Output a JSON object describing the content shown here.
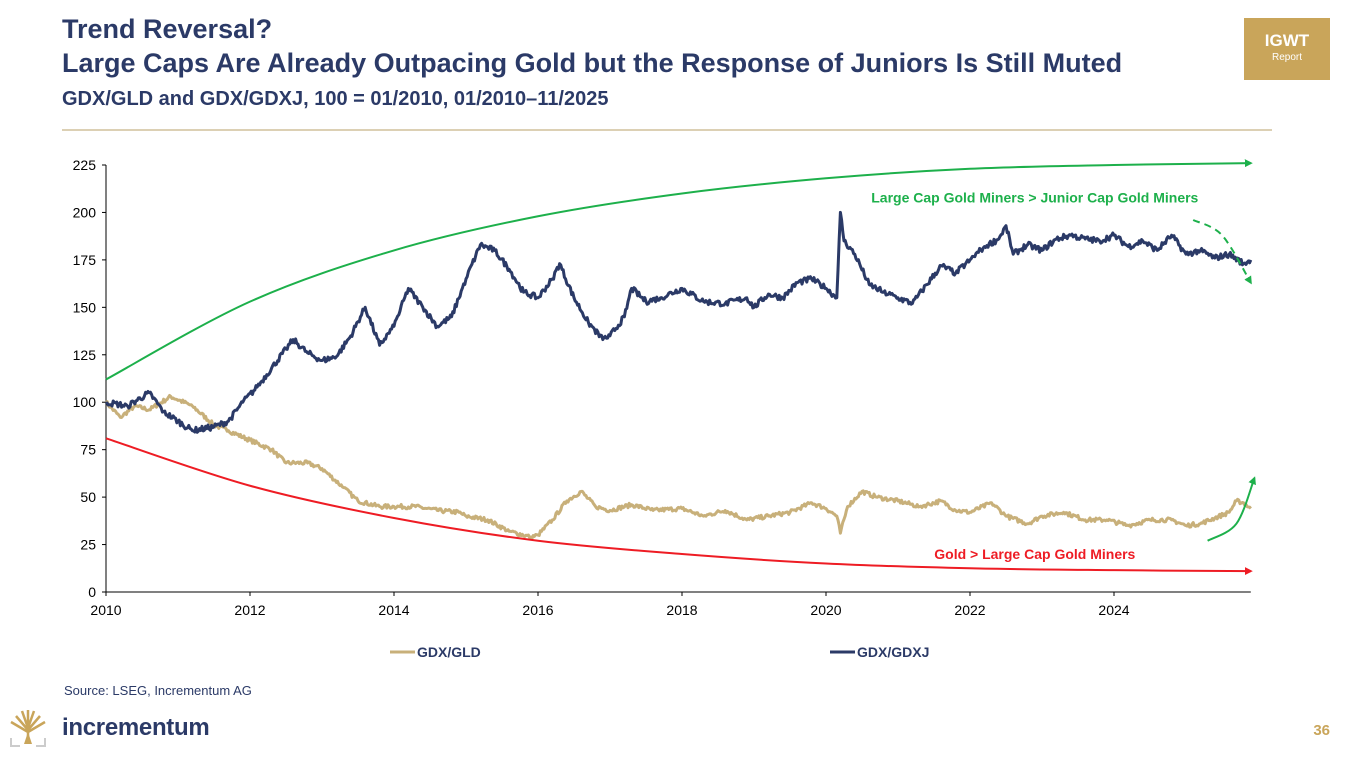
{
  "header": {
    "title_line1": "Trend Reversal?",
    "title_line2": "Large Caps Are Already Outpacing Gold but the Response of Juniors Is Still Muted",
    "subtitle": "GDX/GLD and GDX/GDXJ, 100 = 01/2010, 01/2010–11/2025"
  },
  "badge": {
    "line1": "IGWT",
    "line2": "Report"
  },
  "footer": {
    "source": "Source: LSEG, Incrementum AG",
    "brand": "incrementum",
    "page_number": "36"
  },
  "colors": {
    "navy": "#2b3a67",
    "tan": "#c8b07a",
    "green": "#1db04b",
    "red": "#ee1c24",
    "gold": "#c9a55a"
  },
  "chart_data": {
    "type": "line",
    "title": "",
    "xlabel": "",
    "ylabel": "",
    "xlim": [
      2010,
      2025.9
    ],
    "ylim": [
      0,
      225
    ],
    "xticks": [
      2010,
      2012,
      2014,
      2016,
      2018,
      2020,
      2022,
      2024
    ],
    "xtick_labels": [
      "2010",
      "2012",
      "2014",
      "2016",
      "2018",
      "2020",
      "2022",
      "2024"
    ],
    "yticks": [
      0,
      25,
      50,
      75,
      100,
      125,
      150,
      175,
      200,
      225
    ],
    "ytick_labels": [
      "0",
      "25",
      "50",
      "75",
      "100",
      "125",
      "150",
      "175",
      "200",
      "225"
    ],
    "grid": false,
    "legend_position": "bottom",
    "series": [
      {
        "name": "GDX/GLD",
        "color": "#c8b07a",
        "x": [
          2010,
          2010.2,
          2010.4,
          2010.6,
          2010.9,
          2011.2,
          2011.5,
          2011.7,
          2012.0,
          2012.3,
          2012.5,
          2012.8,
          2013.0,
          2013.3,
          2013.5,
          2013.8,
          2014.0,
          2014.3,
          2014.6,
          2014.9,
          2015.0,
          2015.3,
          2015.6,
          2015.9,
          2016.0,
          2016.2,
          2016.4,
          2016.6,
          2016.8,
          2017.0,
          2017.3,
          2017.6,
          2018.0,
          2018.3,
          2018.6,
          2018.9,
          2019.2,
          2019.5,
          2019.8,
          2020.0,
          2020.15,
          2020.2,
          2020.3,
          2020.5,
          2020.7,
          2021.0,
          2021.3,
          2021.6,
          2021.8,
          2022.0,
          2022.3,
          2022.5,
          2022.8,
          2023.0,
          2023.3,
          2023.6,
          2023.9,
          2024.2,
          2024.5,
          2024.8,
          2025.0,
          2025.2,
          2025.4,
          2025.6,
          2025.7,
          2025.8,
          2025.9
        ],
        "values": [
          100,
          92,
          98,
          96,
          103,
          98,
          88,
          85,
          80,
          75,
          68,
          68,
          65,
          55,
          48,
          45,
          45,
          45,
          43,
          42,
          40,
          38,
          32,
          29,
          30,
          38,
          48,
          53,
          45,
          43,
          46,
          43,
          44,
          40,
          43,
          38,
          40,
          42,
          47,
          44,
          40,
          31,
          45,
          53,
          50,
          48,
          45,
          48,
          43,
          42,
          47,
          40,
          36,
          40,
          42,
          38,
          38,
          35,
          38,
          38,
          35,
          36,
          39,
          42,
          48,
          47,
          44
        ]
      },
      {
        "name": "GDX/GDXJ",
        "color": "#2b3a67",
        "x": [
          2010.0,
          2010.3,
          2010.6,
          2010.8,
          2011.0,
          2011.2,
          2011.5,
          2011.7,
          2011.9,
          2012.1,
          2012.3,
          2012.5,
          2012.6,
          2012.8,
          2013.0,
          2013.2,
          2013.4,
          2013.6,
          2013.8,
          2014.0,
          2014.2,
          2014.4,
          2014.6,
          2014.8,
          2015.0,
          2015.2,
          2015.4,
          2015.6,
          2015.8,
          2016.0,
          2016.2,
          2016.3,
          2016.5,
          2016.7,
          2016.9,
          2017.0,
          2017.2,
          2017.3,
          2017.5,
          2017.7,
          2018.0,
          2018.3,
          2018.6,
          2018.9,
          2019.0,
          2019.2,
          2019.4,
          2019.6,
          2019.8,
          2020.0,
          2020.15,
          2020.2,
          2020.25,
          2020.4,
          2020.6,
          2020.8,
          2021.0,
          2021.2,
          2021.4,
          2021.6,
          2021.8,
          2022.0,
          2022.2,
          2022.4,
          2022.5,
          2022.6,
          2022.8,
          2023.0,
          2023.2,
          2023.4,
          2023.6,
          2023.8,
          2024.0,
          2024.2,
          2024.4,
          2024.6,
          2024.8,
          2025.0,
          2025.2,
          2025.4,
          2025.6,
          2025.8,
          2025.9
        ],
        "values": [
          100,
          98,
          105,
          95,
          90,
          85,
          87,
          90,
          100,
          108,
          118,
          128,
          133,
          126,
          122,
          124,
          135,
          150,
          130,
          140,
          160,
          150,
          140,
          145,
          165,
          183,
          180,
          170,
          158,
          155,
          165,
          173,
          155,
          142,
          133,
          135,
          145,
          160,
          153,
          155,
          160,
          153,
          152,
          155,
          150,
          157,
          155,
          163,
          165,
          160,
          155,
          200,
          185,
          178,
          162,
          158,
          155,
          152,
          162,
          172,
          168,
          175,
          182,
          186,
          193,
          178,
          183,
          180,
          186,
          188,
          186,
          185,
          188,
          182,
          185,
          180,
          188,
          178,
          180,
          176,
          178,
          173,
          175
        ]
      }
    ],
    "trend_lines": [
      {
        "name": "large-cap-trend",
        "color": "#1db04b",
        "x": [
          2010,
          2012,
          2014,
          2016,
          2018,
          2020,
          2022,
          2024,
          2025.9
        ],
        "values": [
          112,
          153,
          180,
          198,
          210,
          218,
          223,
          225,
          226
        ]
      },
      {
        "name": "gold-trend",
        "color": "#ee1c24",
        "x": [
          2010,
          2012,
          2014,
          2016,
          2018,
          2020,
          2022,
          2024,
          2025.9
        ],
        "values": [
          81,
          56,
          39,
          27,
          20,
          15,
          12.5,
          11.5,
          11
        ]
      },
      {
        "name": "juniors-dashed-arrow",
        "color": "#1db04b",
        "dashed": true,
        "x": [
          2025.1,
          2025.5,
          2025.9
        ],
        "values": [
          196,
          188,
          163
        ]
      },
      {
        "name": "gold-reversal-arrow",
        "color": "#1db04b",
        "x": [
          2025.3,
          2025.7,
          2025.95
        ],
        "values": [
          27,
          36,
          60
        ]
      }
    ],
    "annotations": [
      {
        "text": "Large Cap Gold Miners > Junior Cap Gold Miners",
        "color": "#1db04b",
        "x": 2022.9,
        "y": 208
      },
      {
        "text": "Gold > Large Cap Gold Miners",
        "color": "#ee1c24",
        "x": 2022.9,
        "y": 20
      }
    ]
  }
}
